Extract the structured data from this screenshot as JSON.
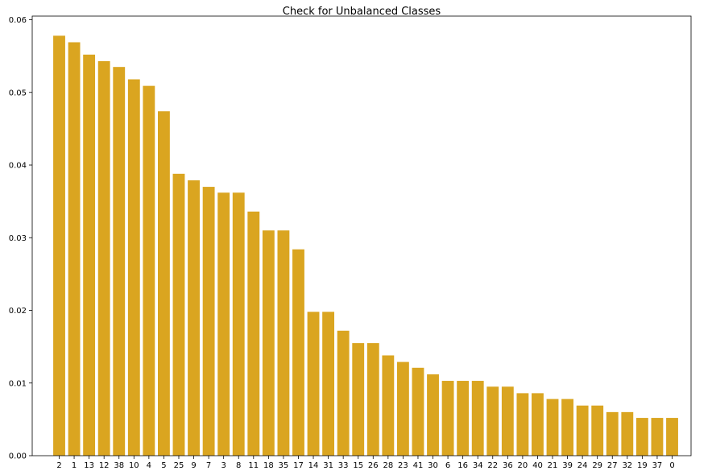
{
  "chart_data": {
    "type": "bar",
    "title": "Check for Unbalanced Classes",
    "xlabel": "",
    "ylabel": "",
    "bar_color": "#DAA520",
    "ylim": [
      0,
      0.0605
    ],
    "yticks": [
      0.0,
      0.01,
      0.02,
      0.03,
      0.04,
      0.05,
      0.06
    ],
    "ytick_labels": [
      "0.00",
      "0.01",
      "0.02",
      "0.03",
      "0.04",
      "0.05",
      "0.06"
    ],
    "grid": false,
    "categories": [
      "2",
      "1",
      "13",
      "12",
      "38",
      "10",
      "4",
      "5",
      "25",
      "9",
      "7",
      "3",
      "8",
      "11",
      "18",
      "35",
      "17",
      "14",
      "31",
      "33",
      "15",
      "26",
      "28",
      "23",
      "41",
      "30",
      "6",
      "16",
      "34",
      "22",
      "36",
      "20",
      "40",
      "21",
      "39",
      "24",
      "29",
      "27",
      "32",
      "19",
      "37",
      "0"
    ],
    "values": [
      0.0578,
      0.0569,
      0.0552,
      0.0543,
      0.0535,
      0.0518,
      0.0509,
      0.0474,
      0.0388,
      0.0379,
      0.037,
      0.0362,
      0.0362,
      0.0336,
      0.031,
      0.031,
      0.0284,
      0.0198,
      0.0198,
      0.0172,
      0.0155,
      0.0155,
      0.0138,
      0.0129,
      0.0121,
      0.0112,
      0.0103,
      0.0103,
      0.0103,
      0.0095,
      0.0095,
      0.0086,
      0.0086,
      0.0078,
      0.0078,
      0.0069,
      0.0069,
      0.006,
      0.006,
      0.0052,
      0.0052,
      0.0052
    ]
  }
}
